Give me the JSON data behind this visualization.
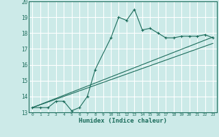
{
  "xlabel": "Humidex (Indice chaleur)",
  "bg_color": "#cceae8",
  "grid_color": "#ffffff",
  "line_color": "#1a6b5a",
  "xlim": [
    -0.5,
    23.5
  ],
  "ylim": [
    13.0,
    20.0
  ],
  "yticks": [
    13,
    14,
    15,
    16,
    17,
    18,
    19,
    20
  ],
  "xticks": [
    0,
    1,
    2,
    3,
    4,
    5,
    6,
    7,
    8,
    9,
    10,
    11,
    12,
    13,
    14,
    15,
    16,
    17,
    18,
    19,
    20,
    21,
    22,
    23
  ],
  "curve1_x": [
    0,
    1,
    2,
    3,
    4,
    5,
    6,
    7,
    8,
    10,
    11,
    12,
    13,
    14,
    15,
    16,
    17,
    18,
    19,
    20,
    21,
    22,
    23
  ],
  "curve1_y": [
    13.3,
    13.3,
    13.3,
    13.7,
    13.7,
    13.1,
    13.3,
    14.0,
    15.7,
    17.7,
    19.0,
    18.8,
    19.5,
    18.2,
    18.3,
    18.0,
    17.7,
    17.7,
    17.8,
    17.8,
    17.8,
    17.9,
    17.7
  ],
  "line2_x": [
    0,
    23
  ],
  "line2_y": [
    13.3,
    17.35
  ],
  "line3_x": [
    0,
    23
  ],
  "line3_y": [
    13.3,
    17.75
  ]
}
